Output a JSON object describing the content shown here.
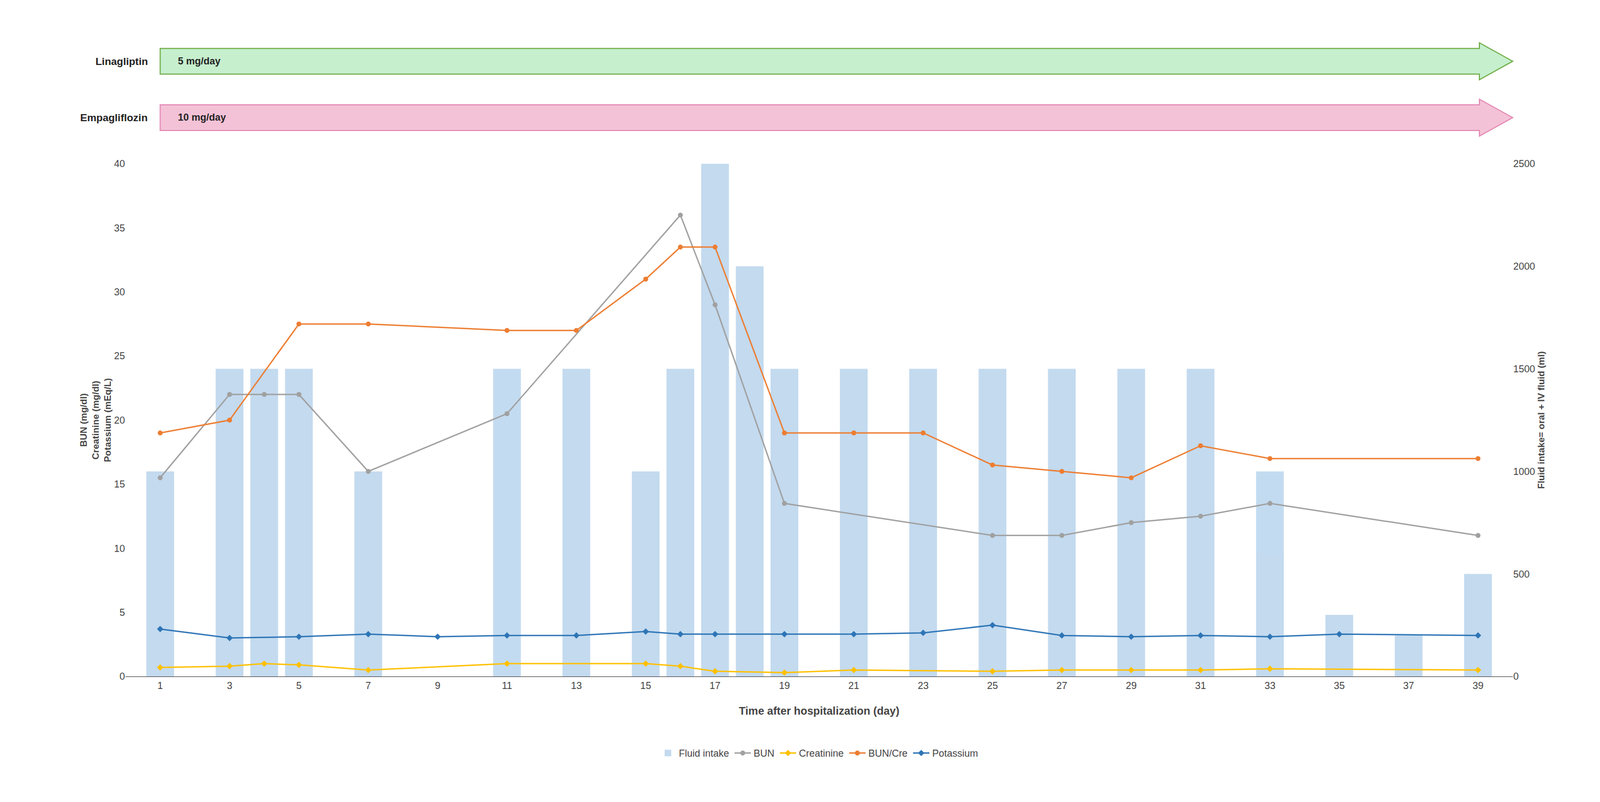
{
  "chart_data": {
    "type": "bar",
    "x_label": "Time after hospitalization (day)",
    "y_label": "BUN (mg/dl)\nCreatinine (mg/dl)\nPotassium (mEq/L)",
    "y2_label": "Fluid intake= oral + IV fluid (ml)",
    "series": [
      {
        "name": "Fluid intake",
        "type": "bar",
        "axis": "y2",
        "color": "#BDD7EE",
        "x": [
          1,
          3,
          4,
          5,
          7,
          11,
          13,
          15,
          16,
          17,
          18,
          19,
          21,
          23,
          25,
          27,
          29,
          31,
          33,
          35,
          37,
          39
        ],
        "values": [
          1000,
          1500,
          1500,
          1500,
          1000,
          1500,
          1500,
          1000,
          1500,
          2500,
          2000,
          1500,
          1500,
          1500,
          1500,
          1500,
          1500,
          1500,
          1000,
          300,
          200,
          500
        ]
      },
      {
        "name": "BUN",
        "type": "line",
        "color": "#A0A0A0",
        "marker": "circle",
        "x": [
          1,
          3,
          4,
          5,
          7,
          11,
          16,
          17,
          19,
          25,
          27,
          29,
          31,
          33,
          39
        ],
        "values": [
          15.5,
          22,
          22,
          22,
          16,
          20.5,
          36,
          29,
          13.5,
          11,
          11,
          12,
          12.5,
          13.5,
          11
        ]
      },
      {
        "name": "Creatinine",
        "type": "line",
        "color": "#FFC000",
        "marker": "diamond",
        "x": [
          1,
          3,
          4,
          5,
          7,
          11,
          15,
          16,
          17,
          19,
          21,
          25,
          27,
          29,
          31,
          33,
          39
        ],
        "values": [
          0.7,
          0.8,
          1.0,
          0.9,
          0.5,
          1.0,
          1.0,
          0.8,
          0.4,
          0.3,
          0.5,
          0.4,
          0.5,
          0.5,
          0.5,
          0.6,
          0.5
        ]
      },
      {
        "name": "BUN/Cre",
        "type": "line",
        "color": "#ED7D31",
        "marker": "circle",
        "x": [
          1,
          3,
          5,
          7,
          11,
          13,
          15,
          16,
          17,
          19,
          21,
          23,
          25,
          27,
          29,
          31,
          33,
          39
        ],
        "values": [
          19.0,
          20.0,
          27.5,
          27.5,
          27.0,
          27.0,
          31.0,
          33.5,
          33.5,
          19.0,
          19.0,
          19.0,
          16.5,
          16.0,
          15.5,
          18.0,
          17.0,
          17.0
        ]
      },
      {
        "name": "Potassium",
        "type": "line",
        "color": "#2E75B6",
        "marker": "diamond",
        "x": [
          1,
          3,
          5,
          7,
          9,
          11,
          13,
          15,
          16,
          17,
          19,
          21,
          23,
          25,
          27,
          29,
          31,
          33,
          35,
          39
        ],
        "values": [
          3.7,
          3.0,
          3.1,
          3.3,
          3.1,
          3.2,
          3.2,
          3.5,
          3.3,
          3.3,
          3.3,
          3.3,
          3.4,
          4.0,
          3.2,
          3.1,
          3.2,
          3.1,
          3.3,
          3.2
        ]
      }
    ],
    "xlim": [
      0,
      40
    ],
    "xticks": [
      1,
      3,
      5,
      7,
      9,
      11,
      13,
      15,
      17,
      19,
      21,
      23,
      25,
      27,
      29,
      31,
      33,
      35,
      37,
      39
    ],
    "ylim": [
      0,
      40
    ],
    "yticks": [
      0,
      5,
      10,
      15,
      20,
      25,
      30,
      35,
      40
    ],
    "y2lim": [
      0,
      2500
    ],
    "y2ticks": [
      0,
      500,
      1000,
      1500,
      2000,
      2500
    ],
    "grid": false,
    "legend": "bottom",
    "annotations": [
      {
        "text": "Linagliptin",
        "label": "5 mg/day",
        "x_start": 1,
        "x_end": 40,
        "color": "#C6EFCE",
        "edgecolor": "#70AD47"
      },
      {
        "text": "Empagliflozin",
        "label": "10 mg/day",
        "x_start": 1,
        "x_end": 40,
        "color": "#F4C2D7",
        "edgecolor": "#E48AB4"
      }
    ]
  }
}
